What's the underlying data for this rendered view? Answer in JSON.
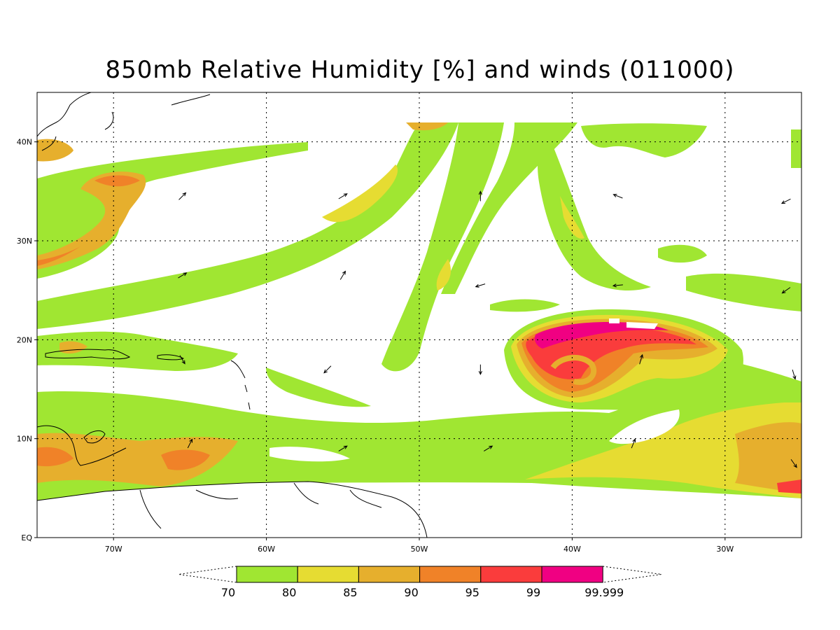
{
  "title": "850mb Relative Humidity [%] and winds (011000)",
  "map": {
    "lon_range": [
      -75,
      -25
    ],
    "lat_range": [
      0,
      45
    ],
    "lon_ticks": [
      {
        "value": -70,
        "label": "70W"
      },
      {
        "value": -60,
        "label": "60W"
      },
      {
        "value": -50,
        "label": "50W"
      },
      {
        "value": -40,
        "label": "40W"
      },
      {
        "value": -30,
        "label": "30W"
      }
    ],
    "lat_ticks": [
      {
        "value": 0,
        "label": "EQ"
      },
      {
        "value": 10,
        "label": "10N"
      },
      {
        "value": 20,
        "label": "20N"
      },
      {
        "value": 30,
        "label": "30N"
      },
      {
        "value": 40,
        "label": "40N"
      }
    ],
    "grid": true
  },
  "colorbar": {
    "levels": [
      "70",
      "80",
      "85",
      "90",
      "95",
      "99",
      "99.999"
    ],
    "colors": [
      "#a0e632",
      "#e6dc32",
      "#e6af2d",
      "#f08228",
      "#fa3c3c",
      "#f00082"
    ]
  },
  "winds": [
    {
      "lon": -65.5,
      "lat": 34.5,
      "u": 1,
      "v": 1
    },
    {
      "lon": -55,
      "lat": 34.5,
      "u": 1,
      "v": 0.6
    },
    {
      "lon": -46,
      "lat": 34.5,
      "u": 0,
      "v": 1
    },
    {
      "lon": -37,
      "lat": 34.5,
      "u": -1,
      "v": 0.4
    },
    {
      "lon": -26,
      "lat": 34,
      "u": -1,
      "v": -0.5
    },
    {
      "lon": -65.5,
      "lat": 26.5,
      "u": 1,
      "v": 0.6
    },
    {
      "lon": -55,
      "lat": 26.5,
      "u": 0.6,
      "v": 1
    },
    {
      "lon": -46,
      "lat": 25.5,
      "u": -1,
      "v": -0.3
    },
    {
      "lon": -37,
      "lat": 25.5,
      "u": -1,
      "v": -0.1
    },
    {
      "lon": -26,
      "lat": 25,
      "u": -1,
      "v": -0.7
    },
    {
      "lon": -65.5,
      "lat": 18,
      "u": 0.6,
      "v": -1
    },
    {
      "lon": -56,
      "lat": 17,
      "u": -1,
      "v": -1
    },
    {
      "lon": -46,
      "lat": 17,
      "u": 0,
      "v": -1
    },
    {
      "lon": -35.5,
      "lat": 18,
      "u": 0.3,
      "v": 1
    },
    {
      "lon": -25.5,
      "lat": 16.5,
      "u": 0.3,
      "v": -1
    },
    {
      "lon": -65,
      "lat": 9.5,
      "u": 0.5,
      "v": 1
    },
    {
      "lon": -55,
      "lat": 9,
      "u": 1,
      "v": 0.6
    },
    {
      "lon": -45.5,
      "lat": 9,
      "u": 1,
      "v": 0.6
    },
    {
      "lon": -36,
      "lat": 9.5,
      "u": 0.4,
      "v": 1
    },
    {
      "lon": -25.5,
      "lat": 7.5,
      "u": 0.7,
      "v": -1
    }
  ]
}
